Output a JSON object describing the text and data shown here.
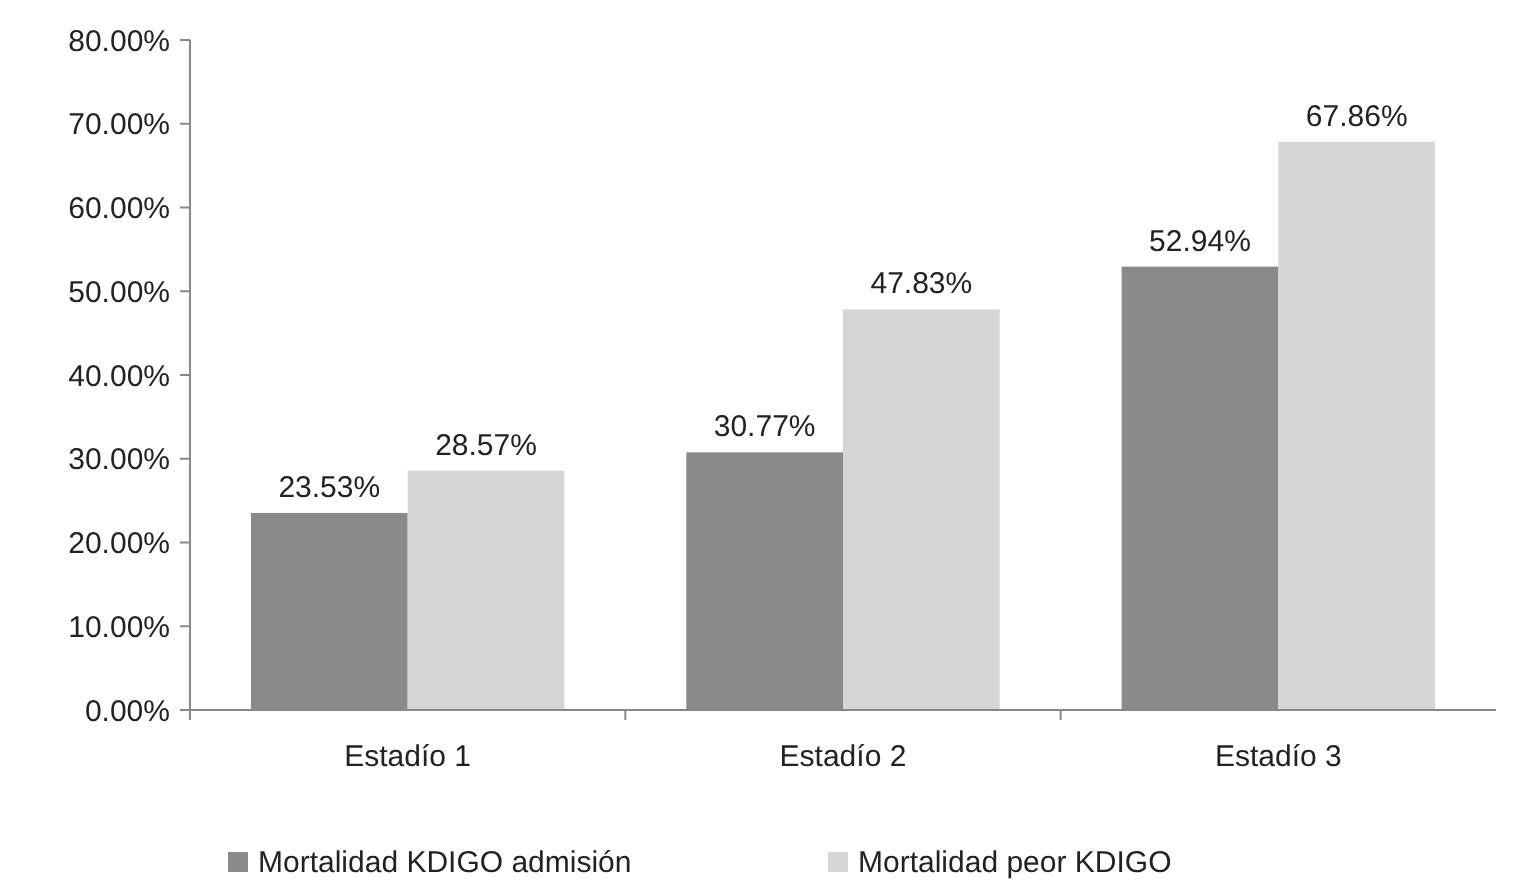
{
  "chart_data": {
    "type": "bar",
    "categories": [
      "Estadío 1",
      "Estadío 2",
      "Estadío 3"
    ],
    "series": [
      {
        "name": "Mortalidad KDIGO admisión",
        "color": "#8a8a8a",
        "values": [
          23.53,
          30.77,
          52.94
        ],
        "value_labels": [
          "23.53%",
          "30.77%",
          "52.94%"
        ]
      },
      {
        "name": "Mortalidad peor KDIGO",
        "color": "#d6d6d6",
        "values": [
          28.57,
          47.83,
          67.86
        ],
        "value_labels": [
          "28.57%",
          "47.83%",
          "67.86%"
        ]
      }
    ],
    "ylim": [
      0,
      80
    ],
    "yticks": [
      {
        "value": 0,
        "label": "0.00%"
      },
      {
        "value": 10,
        "label": "10.00%"
      },
      {
        "value": 20,
        "label": "20.00%"
      },
      {
        "value": 30,
        "label": "30.00%"
      },
      {
        "value": 40,
        "label": "40.00%"
      },
      {
        "value": 50,
        "label": "50.00%"
      },
      {
        "value": 60,
        "label": "60.00%"
      },
      {
        "value": 70,
        "label": "70.00%"
      },
      {
        "value": 80,
        "label": "80.00%"
      }
    ],
    "grid": false,
    "legend": "bottom"
  }
}
